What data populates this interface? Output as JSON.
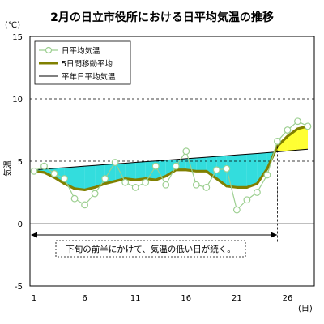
{
  "chart_data": {
    "type": "line",
    "title": "2月の日立市役所における日平均気温の推移",
    "ylabel": "気温",
    "yunit": "(℃)",
    "xunit": "(日)",
    "xlim": [
      1,
      28
    ],
    "ylim": [
      -5,
      15
    ],
    "yticks": [
      -5,
      0,
      5,
      10,
      15
    ],
    "xticks": [
      1,
      6,
      11,
      16,
      21,
      26
    ],
    "grid": "dashed horizontal at 5 and 10",
    "legend_position": "top-left",
    "legend": [
      "日平均気温",
      "5日間移動平均",
      "平年日平均気温"
    ],
    "annotation": "下旬の前半にかけて、気温の低い日が続く。",
    "annotation_range_days": [
      1,
      25
    ],
    "marker_day": 25,
    "colors": {
      "daily": "#9ccf90",
      "moving_avg": "#808000",
      "normal": "#000000",
      "below_normal_fill": "#33dddd",
      "above_normal_fill": "#ffff33"
    },
    "x": [
      1,
      2,
      3,
      4,
      5,
      6,
      7,
      8,
      9,
      10,
      11,
      12,
      13,
      14,
      15,
      16,
      17,
      18,
      19,
      20,
      21,
      22,
      23,
      24,
      25,
      26,
      27,
      28
    ],
    "series": [
      {
        "name": "日平均気温",
        "values": [
          4.2,
          4.6,
          4.0,
          3.6,
          2.0,
          1.5,
          2.4,
          3.6,
          4.9,
          3.3,
          2.9,
          3.3,
          4.6,
          3.1,
          4.6,
          5.8,
          3.1,
          2.9,
          4.3,
          4.4,
          1.1,
          1.9,
          2.5,
          3.9,
          6.6,
          7.5,
          8.2,
          7.8
        ]
      },
      {
        "name": "5日間移動平均",
        "values": [
          4.2,
          4.1,
          3.7,
          3.2,
          2.8,
          2.7,
          2.9,
          3.2,
          3.4,
          3.6,
          3.5,
          3.6,
          3.5,
          3.8,
          4.3,
          4.3,
          4.2,
          4.2,
          3.6,
          3.0,
          2.9,
          2.9,
          3.2,
          4.4,
          6.2,
          7.0,
          7.6,
          7.8
        ]
      },
      {
        "name": "平年日平均気温",
        "values": [
          4.3,
          4.36,
          4.42,
          4.48,
          4.54,
          4.6,
          4.66,
          4.72,
          4.78,
          4.84,
          4.9,
          4.96,
          5.02,
          5.08,
          5.14,
          5.2,
          5.26,
          5.32,
          5.38,
          5.44,
          5.5,
          5.56,
          5.62,
          5.68,
          5.75,
          5.82,
          5.89,
          5.96
        ]
      }
    ]
  }
}
